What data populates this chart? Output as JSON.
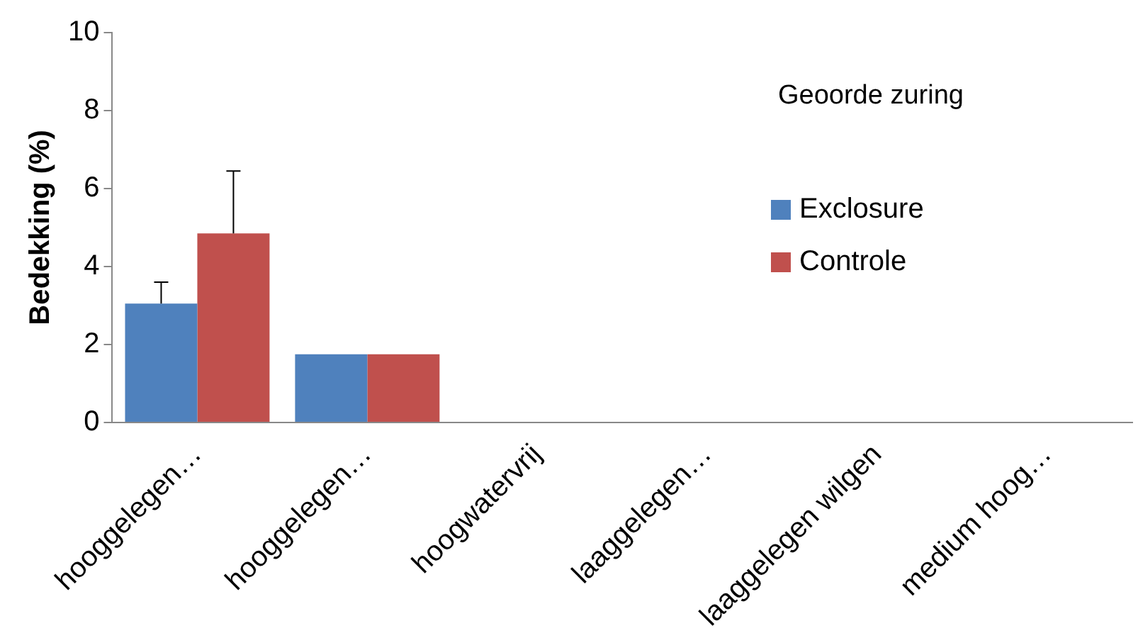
{
  "chart_data": {
    "type": "bar",
    "title": "Geoorde zuring",
    "ylabel": "Bedekking (%)",
    "categories": [
      "hooggelegen…",
      "hooggelegen…",
      "hoogwatervrij",
      "laaggelegen…",
      "laaggelegen wilgen",
      "medium hoog…"
    ],
    "series": [
      {
        "name": "Exclosure",
        "color": "#4f81bd",
        "values": [
          3.05,
          1.75,
          0,
          0,
          0,
          0
        ],
        "errors": [
          0.55,
          null,
          null,
          null,
          null,
          null
        ]
      },
      {
        "name": "Controle",
        "color": "#c0504d",
        "values": [
          4.85,
          1.75,
          0,
          0,
          0,
          0
        ],
        "errors": [
          1.6,
          null,
          null,
          null,
          null,
          null
        ]
      }
    ],
    "ylim": [
      0,
      10
    ],
    "yticks": [
      0,
      2,
      4,
      6,
      8,
      10
    ],
    "grid": false,
    "legend": "right"
  }
}
